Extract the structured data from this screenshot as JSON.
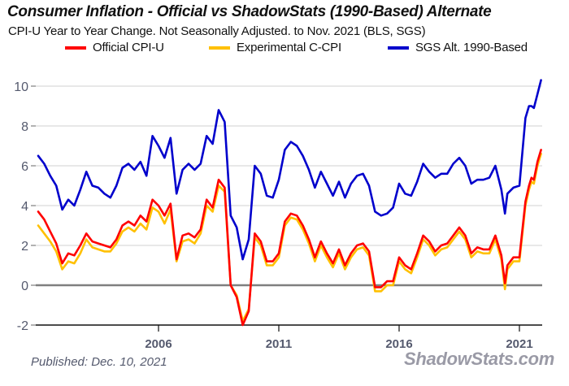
{
  "chart_data": {
    "type": "line",
    "title": "Consumer Inflation - Official vs ShadowStats (1990-Based) Alternate",
    "subtitle": "CPI-U Year to Year Change. Not Seasonally Adjusted. to Nov. 2021  (BLS, SGS)",
    "xlabel": "",
    "ylabel": "",
    "xlim": [
      2001.0,
      2021.9
    ],
    "ylim": [
      -2,
      10
    ],
    "x_ticks": [
      2006,
      2011,
      2016,
      2021
    ],
    "x_tick_labels": [
      "2006",
      "2011",
      "2016",
      "2021"
    ],
    "y_ticks": [
      -2,
      0,
      2,
      4,
      6,
      8,
      10
    ],
    "y_tick_labels": [
      "-2",
      "0",
      "2",
      "4",
      "6",
      "8",
      "10"
    ],
    "grid": true,
    "legend_position": "top",
    "series": [
      {
        "name": "Official CPI-U",
        "color": "#ff0000",
        "x": [
          2001.0,
          2001.25,
          2001.5,
          2001.75,
          2002.0,
          2002.25,
          2002.5,
          2002.75,
          2003.0,
          2003.25,
          2003.5,
          2003.75,
          2004.0,
          2004.25,
          2004.5,
          2004.75,
          2005.0,
          2005.25,
          2005.5,
          2005.75,
          2006.0,
          2006.25,
          2006.5,
          2006.75,
          2007.0,
          2007.25,
          2007.5,
          2007.75,
          2008.0,
          2008.25,
          2008.5,
          2008.75,
          2009.0,
          2009.25,
          2009.5,
          2009.75,
          2010.0,
          2010.25,
          2010.5,
          2010.75,
          2011.0,
          2011.25,
          2011.5,
          2011.75,
          2012.0,
          2012.25,
          2012.5,
          2012.75,
          2013.0,
          2013.25,
          2013.5,
          2013.75,
          2014.0,
          2014.25,
          2014.5,
          2014.75,
          2015.0,
          2015.25,
          2015.5,
          2015.75,
          2016.0,
          2016.25,
          2016.5,
          2016.75,
          2017.0,
          2017.25,
          2017.5,
          2017.75,
          2018.0,
          2018.25,
          2018.5,
          2018.75,
          2019.0,
          2019.25,
          2019.5,
          2019.75,
          2020.0,
          2020.25,
          2020.4,
          2020.5,
          2020.75,
          2021.0,
          2021.25,
          2021.4,
          2021.5,
          2021.6,
          2021.75,
          2021.9
        ],
        "values": [
          3.7,
          3.3,
          2.7,
          2.1,
          1.1,
          1.6,
          1.5,
          2.0,
          2.6,
          2.2,
          2.1,
          2.0,
          1.9,
          2.3,
          3.0,
          3.2,
          3.0,
          3.5,
          3.2,
          4.3,
          4.0,
          3.5,
          4.1,
          1.3,
          2.5,
          2.6,
          2.4,
          2.8,
          4.3,
          3.9,
          5.3,
          4.9,
          0.0,
          -0.6,
          -2.0,
          -1.3,
          2.6,
          2.2,
          1.2,
          1.2,
          1.6,
          3.2,
          3.6,
          3.5,
          3.0,
          2.3,
          1.4,
          2.2,
          1.6,
          1.1,
          1.8,
          1.0,
          1.6,
          2.0,
          2.1,
          1.7,
          -0.1,
          -0.1,
          0.2,
          0.2,
          1.4,
          1.0,
          0.8,
          1.6,
          2.5,
          2.2,
          1.7,
          2.0,
          2.1,
          2.5,
          2.9,
          2.5,
          1.6,
          1.9,
          1.8,
          1.8,
          2.5,
          1.5,
          0.1,
          1.0,
          1.4,
          1.4,
          4.2,
          5.0,
          5.4,
          5.3,
          6.2,
          6.8
        ]
      },
      {
        "name": "Experimental C-CPI",
        "color": "#ffc000",
        "x": [
          2001.0,
          2001.25,
          2001.5,
          2001.75,
          2002.0,
          2002.25,
          2002.5,
          2002.75,
          2003.0,
          2003.25,
          2003.5,
          2003.75,
          2004.0,
          2004.25,
          2004.5,
          2004.75,
          2005.0,
          2005.25,
          2005.5,
          2005.75,
          2006.0,
          2006.25,
          2006.5,
          2006.75,
          2007.0,
          2007.25,
          2007.5,
          2007.75,
          2008.0,
          2008.25,
          2008.5,
          2008.75,
          2009.0,
          2009.25,
          2009.5,
          2009.75,
          2010.0,
          2010.25,
          2010.5,
          2010.75,
          2011.0,
          2011.25,
          2011.5,
          2011.75,
          2012.0,
          2012.25,
          2012.5,
          2012.75,
          2013.0,
          2013.25,
          2013.5,
          2013.75,
          2014.0,
          2014.25,
          2014.5,
          2014.75,
          2015.0,
          2015.25,
          2015.5,
          2015.75,
          2016.0,
          2016.25,
          2016.5,
          2016.75,
          2017.0,
          2017.25,
          2017.5,
          2017.75,
          2018.0,
          2018.25,
          2018.5,
          2018.75,
          2019.0,
          2019.25,
          2019.5,
          2019.75,
          2020.0,
          2020.25,
          2020.4,
          2020.5,
          2020.75,
          2021.0,
          2021.25,
          2021.4,
          2021.5,
          2021.6,
          2021.75,
          2021.9
        ],
        "values": [
          3.0,
          2.6,
          2.2,
          1.7,
          0.8,
          1.2,
          1.1,
          1.6,
          2.3,
          1.9,
          1.8,
          1.7,
          1.7,
          2.1,
          2.7,
          2.9,
          2.7,
          3.1,
          2.8,
          3.9,
          3.7,
          3.1,
          3.8,
          1.2,
          2.2,
          2.3,
          2.1,
          2.6,
          4.0,
          3.7,
          5.0,
          4.7,
          0.0,
          -0.5,
          -1.8,
          -1.2,
          2.4,
          2.0,
          1.0,
          1.0,
          1.4,
          3.0,
          3.4,
          3.3,
          2.8,
          2.1,
          1.2,
          2.0,
          1.4,
          0.9,
          1.6,
          0.8,
          1.4,
          1.8,
          1.9,
          1.5,
          -0.3,
          -0.3,
          0.0,
          0.0,
          1.2,
          0.8,
          0.6,
          1.4,
          2.3,
          2.0,
          1.5,
          1.8,
          1.9,
          2.3,
          2.7,
          2.3,
          1.4,
          1.7,
          1.6,
          1.6,
          2.3,
          1.3,
          -0.2,
          0.8,
          1.2,
          1.2,
          4.0,
          4.8,
          5.2,
          5.1,
          6.0,
          6.6
        ]
      },
      {
        "name": "SGS  Alt. 1990-Based",
        "color": "#0000cc",
        "x": [
          2001.0,
          2001.25,
          2001.5,
          2001.75,
          2002.0,
          2002.25,
          2002.5,
          2002.75,
          2003.0,
          2003.25,
          2003.5,
          2003.75,
          2004.0,
          2004.25,
          2004.5,
          2004.75,
          2005.0,
          2005.25,
          2005.5,
          2005.75,
          2006.0,
          2006.25,
          2006.5,
          2006.75,
          2007.0,
          2007.25,
          2007.5,
          2007.75,
          2008.0,
          2008.25,
          2008.5,
          2008.75,
          2009.0,
          2009.25,
          2009.5,
          2009.75,
          2010.0,
          2010.25,
          2010.5,
          2010.75,
          2011.0,
          2011.25,
          2011.5,
          2011.75,
          2012.0,
          2012.25,
          2012.5,
          2012.75,
          2013.0,
          2013.25,
          2013.5,
          2013.75,
          2014.0,
          2014.25,
          2014.5,
          2014.75,
          2015.0,
          2015.25,
          2015.5,
          2015.75,
          2016.0,
          2016.25,
          2016.5,
          2016.75,
          2017.0,
          2017.25,
          2017.5,
          2017.75,
          2018.0,
          2018.25,
          2018.5,
          2018.75,
          2019.0,
          2019.25,
          2019.5,
          2019.75,
          2020.0,
          2020.25,
          2020.4,
          2020.5,
          2020.75,
          2021.0,
          2021.25,
          2021.4,
          2021.5,
          2021.6,
          2021.75,
          2021.9
        ],
        "values": [
          6.5,
          6.1,
          5.5,
          5.0,
          3.8,
          4.3,
          4.0,
          4.8,
          5.7,
          5.0,
          4.9,
          4.6,
          4.4,
          5.0,
          5.9,
          6.1,
          5.8,
          6.2,
          5.5,
          7.5,
          7.0,
          6.4,
          7.4,
          4.6,
          5.8,
          6.1,
          5.8,
          6.1,
          7.5,
          7.1,
          8.8,
          8.2,
          3.5,
          2.9,
          1.3,
          2.3,
          6.0,
          5.6,
          4.5,
          4.4,
          5.3,
          6.8,
          7.2,
          7.0,
          6.5,
          5.8,
          4.9,
          5.7,
          5.1,
          4.5,
          5.2,
          4.4,
          5.1,
          5.5,
          5.6,
          5.0,
          3.7,
          3.5,
          3.6,
          3.9,
          5.1,
          4.6,
          4.5,
          5.2,
          6.1,
          5.7,
          5.4,
          5.6,
          5.6,
          6.1,
          6.4,
          6.0,
          5.1,
          5.3,
          5.3,
          5.4,
          6.0,
          4.8,
          3.6,
          4.6,
          4.9,
          5.0,
          8.4,
          9.0,
          9.0,
          8.9,
          9.6,
          10.3
        ]
      }
    ]
  },
  "header": {
    "title": "Consumer Inflation - Official vs ShadowStats (1990-Based) Alternate",
    "subtitle": "CPI-U Year to Year Change. Not Seasonally Adjusted. to Nov. 2021  (BLS, SGS)"
  },
  "legend": [
    {
      "label": "Official CPI-U",
      "color": "#ff0000"
    },
    {
      "label": "Experimental C-CPI",
      "color": "#ffc000"
    },
    {
      "label": "SGS  Alt. 1990-Based",
      "color": "#0000cc"
    }
  ],
  "footer": {
    "published": "Published: Dec. 10, 2021",
    "brand": "ShadowStats.com"
  }
}
